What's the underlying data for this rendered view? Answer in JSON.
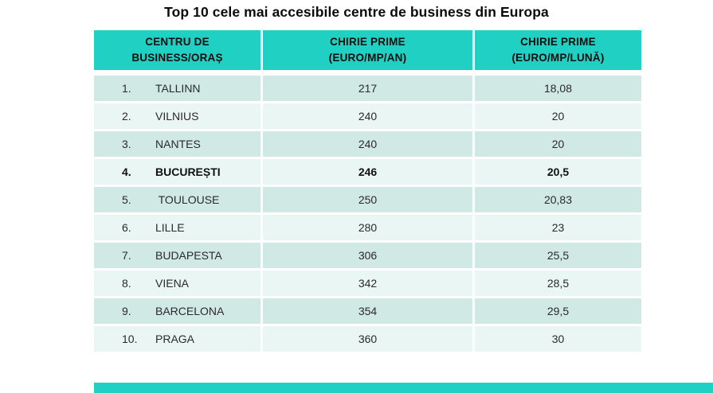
{
  "title": "Top 10 cele mai accesibile centre de business din Europa",
  "colors": {
    "header_bg": "#20d1c3",
    "row_odd_bg": "#d0e9e5",
    "row_even_bg": "#e9f6f3",
    "footer_bar": "#20d1c3",
    "title_text": "#0b0b0b",
    "body_text": "#2a2a2a"
  },
  "table": {
    "columns": [
      "CENTRU DE\nBUSINESS/ORAȘ",
      "CHIRIE PRIME\n(EURO/MP/AN)",
      "CHIRIE PRIME\n(EURO/MP/LUNĂ)"
    ],
    "rows": [
      {
        "rank": "1.",
        "city": "TALLINN",
        "chirie_an": "217",
        "chirie_luna": "18,08",
        "bold": false
      },
      {
        "rank": "2.",
        "city": "VILNIUS",
        "chirie_an": "240",
        "chirie_luna": "20",
        "bold": false
      },
      {
        "rank": "3.",
        "city": "NANTES",
        "chirie_an": "240",
        "chirie_luna": "20",
        "bold": false
      },
      {
        "rank": "4.",
        "city": "BUCUREȘTI",
        "chirie_an": "246",
        "chirie_luna": "20,5",
        "bold": true
      },
      {
        "rank": "5.",
        "city": " TOULOUSE",
        "chirie_an": "250",
        "chirie_luna": "20,83",
        "bold": false
      },
      {
        "rank": "6.",
        "city": "LILLE",
        "chirie_an": "280",
        "chirie_luna": "23",
        "bold": false
      },
      {
        "rank": "7.",
        "city": "BUDAPESTA",
        "chirie_an": "306",
        "chirie_luna": "25,5",
        "bold": false
      },
      {
        "rank": "8.",
        "city": "VIENA",
        "chirie_an": "342",
        "chirie_luna": "28,5",
        "bold": false
      },
      {
        "rank": "9.",
        "city": "BARCELONA",
        "chirie_an": "354",
        "chirie_luna": "29,5",
        "bold": false
      },
      {
        "rank": "10.",
        "city": "PRAGA",
        "chirie_an": "360",
        "chirie_luna": "30",
        "bold": false
      }
    ]
  },
  "chart_data": {
    "type": "table",
    "title": "Top 10 cele mai accesibile centre de business din Europa",
    "columns": [
      "CENTRU DE BUSINESS/ORAȘ",
      "CHIRIE PRIME (EURO/MP/AN)",
      "CHIRIE PRIME (EURO/MP/LUNĂ)"
    ],
    "rows": [
      [
        "1. TALLINN",
        217,
        18.08
      ],
      [
        "2. VILNIUS",
        240,
        20
      ],
      [
        "3. NANTES",
        240,
        20
      ],
      [
        "4. BUCUREȘTI",
        246,
        20.5
      ],
      [
        "5. TOULOUSE",
        250,
        20.83
      ],
      [
        "6. LILLE",
        280,
        23
      ],
      [
        "7. BUDAPESTA",
        306,
        25.5
      ],
      [
        "8. VIENA",
        342,
        28.5
      ],
      [
        "9. BARCELONA",
        354,
        29.5
      ],
      [
        "10. PRAGA",
        360,
        30
      ]
    ],
    "highlighted_row": "4. BUCUREȘTI",
    "layout_hints": {
      "header_style": "teal background, bold, centered, two lines",
      "zebra_striping": true,
      "numbers_decimal_separator": "comma"
    }
  }
}
